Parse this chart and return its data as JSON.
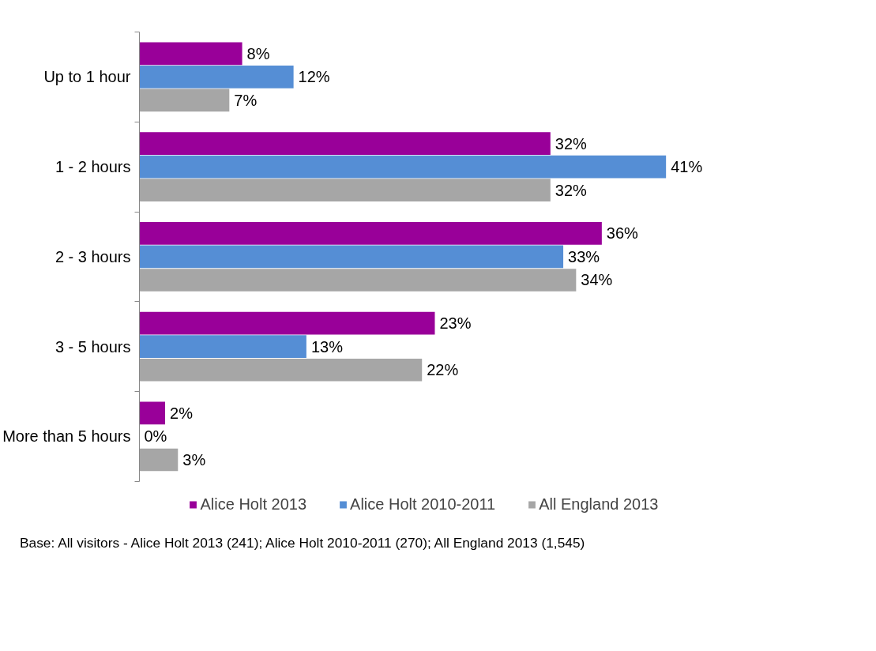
{
  "chart_data": {
    "type": "bar",
    "orientation": "horizontal",
    "categories": [
      "Up to 1 hour",
      "1 - 2 hours",
      "2 - 3 hours",
      "3 - 5 hours",
      "More than 5 hours"
    ],
    "series": [
      {
        "name": "Alice Holt 2013",
        "color": "#990099",
        "values": [
          8,
          32,
          36,
          23,
          2
        ],
        "value_labels": [
          "8%",
          "32%",
          "36%",
          "23%",
          "2%"
        ]
      },
      {
        "name": "Alice Holt 2010-2011",
        "color": "#558ed5",
        "values": [
          12,
          41,
          33,
          13,
          0
        ],
        "value_labels": [
          "12%",
          "41%",
          "33%",
          "13%",
          "0%"
        ]
      },
      {
        "name": "All England 2013",
        "color": "#a6a6a6",
        "values": [
          7,
          32,
          34,
          22,
          3
        ],
        "value_labels": [
          "7%",
          "32%",
          "34%",
          "22%",
          "3%"
        ]
      }
    ],
    "legend": "bottom",
    "grid": false,
    "annotations": [
      "Base: All visitors - Alice Holt 2013 (241); Alice Holt 2010-2011 (270); All England 2013 (1,545)"
    ]
  }
}
